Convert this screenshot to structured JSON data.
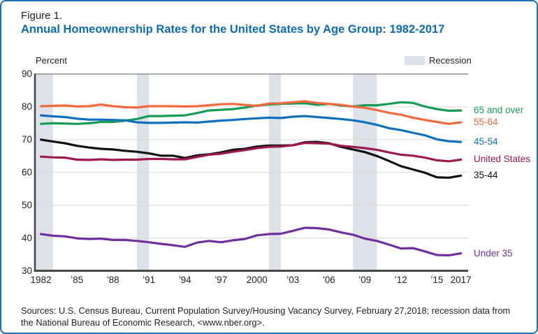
{
  "figure": {
    "label": "Figure 1.",
    "title": "Annual Homeownership Rates for the United States by Age Group: 1982-2017"
  },
  "legend": {
    "recession_label": "Recession",
    "recession_color": "#dde1e8"
  },
  "colors": {
    "border_blue": "#1b72b6",
    "title_blue": "#0d6cb6",
    "gridline": "#d9d9d9",
    "top_gridline": "#8f9194",
    "axis": "#47494b"
  },
  "source_note": "Sources: U.S. Census Bureau, Current Population Survey/Housing Vacancy Survey, February 27,2018; recession data from the National Bureau of Economic Research, <www.nber.org>.",
  "chart_data": {
    "type": "line",
    "title": "Annual Homeownership Rates for the United States by Age Group: 1982-2017",
    "ylabel": "Percent",
    "xlabel": "",
    "ylim": [
      30,
      90
    ],
    "grid": true,
    "legend_position": "right",
    "yticks": [
      30,
      40,
      50,
      60,
      70,
      80,
      90
    ],
    "x": [
      1982,
      1983,
      1984,
      1985,
      1986,
      1987,
      1988,
      1989,
      1990,
      1991,
      1992,
      1993,
      1994,
      1995,
      1996,
      1997,
      1998,
      1999,
      2000,
      2001,
      2002,
      2003,
      2004,
      2005,
      2006,
      2007,
      2008,
      2009,
      2010,
      2011,
      2012,
      2013,
      2014,
      2015,
      2016,
      2017
    ],
    "xtick_labels": [
      {
        "year": 1982,
        "label": "1982"
      },
      {
        "year": 1985,
        "label": "’85"
      },
      {
        "year": 1988,
        "label": "’88"
      },
      {
        "year": 1991,
        "label": "’91"
      },
      {
        "year": 1994,
        "label": "’94"
      },
      {
        "year": 1997,
        "label": "’97"
      },
      {
        "year": 2000,
        "label": "2000"
      },
      {
        "year": 2003,
        "label": "’03"
      },
      {
        "year": 2006,
        "label": "’06"
      },
      {
        "year": 2009,
        "label": "’09"
      },
      {
        "year": 2012,
        "label": "’12"
      },
      {
        "year": 2015,
        "label": "’15"
      },
      {
        "year": 2017,
        "label": "2017"
      }
    ],
    "recessions": [
      [
        1981.5,
        1983.0
      ],
      [
        1990.0,
        1991.0
      ],
      [
        2001.0,
        2002.0
      ],
      [
        2008.0,
        2010.0
      ]
    ],
    "series": [
      {
        "name": "65 and over",
        "color": "#169c54",
        "values": [
          74.8,
          75.0,
          74.9,
          74.8,
          75.0,
          75.4,
          75.4,
          75.8,
          76.3,
          77.2,
          77.2,
          77.3,
          77.4,
          78.1,
          78.9,
          79.1,
          79.3,
          79.8,
          80.4,
          80.7,
          80.9,
          81.0,
          81.1,
          80.6,
          80.9,
          80.4,
          80.1,
          80.5,
          80.5,
          80.9,
          81.4,
          81.2,
          80.1,
          79.3,
          78.8,
          78.9
        ]
      },
      {
        "name": "55-64",
        "color": "#f3683c",
        "values": [
          80.2,
          80.3,
          80.4,
          80.1,
          80.2,
          80.7,
          80.2,
          79.9,
          79.8,
          80.2,
          80.2,
          80.2,
          80.1,
          80.2,
          80.5,
          80.8,
          80.9,
          80.6,
          80.3,
          81.0,
          81.1,
          81.4,
          81.7,
          81.2,
          80.9,
          80.6,
          80.1,
          79.7,
          79.0,
          78.2,
          77.6,
          76.7,
          76.0,
          75.4,
          74.8,
          75.3
        ]
      },
      {
        "name": "45-54",
        "color": "#0f70bd",
        "values": [
          77.4,
          77.1,
          76.9,
          76.4,
          76.1,
          76.1,
          76.0,
          75.9,
          75.3,
          75.1,
          75.1,
          75.2,
          75.3,
          75.2,
          75.5,
          75.8,
          76.0,
          76.3,
          76.5,
          76.7,
          76.6,
          77.0,
          77.2,
          76.9,
          76.6,
          76.3,
          75.9,
          75.3,
          74.5,
          73.5,
          72.9,
          72.1,
          71.3,
          70.1,
          69.5,
          69.3
        ]
      },
      {
        "name": "35-44",
        "color": "#111111",
        "values": [
          70.0,
          69.4,
          68.9,
          68.1,
          67.6,
          67.2,
          67.0,
          66.6,
          66.3,
          65.8,
          65.1,
          65.1,
          64.4,
          65.2,
          65.5,
          66.1,
          66.9,
          67.2,
          67.9,
          68.2,
          68.2,
          68.3,
          69.2,
          69.3,
          68.9,
          67.8,
          67.0,
          66.2,
          65.0,
          63.5,
          61.9,
          60.9,
          59.9,
          58.5,
          58.4,
          59.0
        ]
      },
      {
        "name": "United States",
        "color": "#9e1a4d",
        "values": [
          64.8,
          64.6,
          64.5,
          63.9,
          63.8,
          64.0,
          63.8,
          63.9,
          63.9,
          64.1,
          64.1,
          64.0,
          64.0,
          64.7,
          65.4,
          65.7,
          66.3,
          66.8,
          67.4,
          67.8,
          67.9,
          68.3,
          69.0,
          68.9,
          68.8,
          68.1,
          67.8,
          67.4,
          66.9,
          66.1,
          65.4,
          65.1,
          64.5,
          63.7,
          63.4,
          63.9
        ]
      },
      {
        "name": "Under 35",
        "color": "#6f2f9f",
        "values": [
          41.2,
          40.7,
          40.5,
          39.9,
          39.7,
          39.8,
          39.4,
          39.4,
          39.1,
          38.7,
          38.2,
          37.8,
          37.3,
          38.6,
          39.1,
          38.7,
          39.3,
          39.7,
          40.8,
          41.2,
          41.3,
          42.2,
          43.1,
          43.0,
          42.6,
          41.7,
          41.0,
          39.8,
          39.1,
          38.0,
          36.8,
          36.9,
          35.9,
          34.8,
          34.7,
          35.3
        ]
      }
    ],
    "label_order_right": [
      "65 and over",
      "55-64",
      "45-54",
      "United States",
      "35-44",
      "Under 35"
    ]
  }
}
